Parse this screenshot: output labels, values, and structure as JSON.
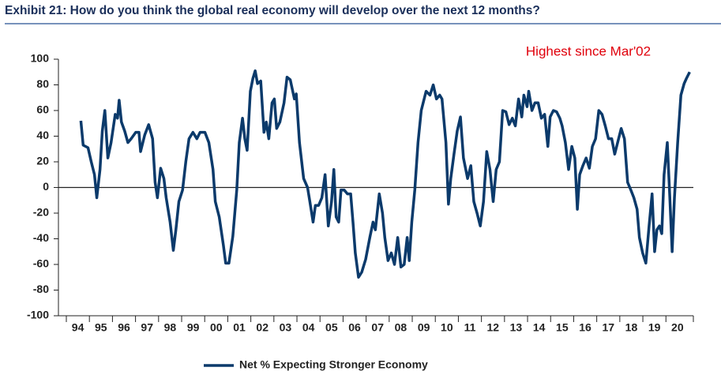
{
  "chart_data": {
    "type": "line",
    "title": "Exhibit 21: How do you think the global real economy will develop over the next 12 months?",
    "annotation": "Highest since Mar'02",
    "x": [
      1994.63,
      1994.73,
      1994.94,
      1995.08,
      1995.22,
      1995.32,
      1995.46,
      1995.56,
      1995.67,
      1995.8,
      1995.94,
      1996.12,
      1996.22,
      1996.29,
      1996.39,
      1996.53,
      1996.67,
      1996.81,
      1997.01,
      1997.15,
      1997.22,
      1997.4,
      1997.57,
      1997.74,
      1997.85,
      1997.95,
      1998.09,
      1998.23,
      1998.33,
      1998.5,
      1998.64,
      1998.75,
      1998.88,
      1999.04,
      1999.18,
      1999.32,
      1999.49,
      1999.66,
      1999.8,
      2000.01,
      2000.18,
      2000.36,
      2000.46,
      2000.63,
      2000.81,
      2000.91,
      2001.05,
      2001.22,
      2001.39,
      2001.5,
      2001.64,
      2001.74,
      2001.84,
      2001.98,
      2002.09,
      2002.19,
      2002.29,
      2002.43,
      2002.57,
      2002.67,
      2002.78,
      2002.92,
      2003.02,
      2003.12,
      2003.26,
      2003.44,
      2003.57,
      2003.71,
      2003.89,
      2003.97,
      2004.11,
      2004.29,
      2004.46,
      2004.56,
      2004.7,
      2004.8,
      2004.94,
      2005.08,
      2005.22,
      2005.36,
      2005.5,
      2005.6,
      2005.7,
      2005.81,
      2005.91,
      2006.05,
      2006.19,
      2006.33,
      2006.43,
      2006.53,
      2006.67,
      2006.81,
      2006.98,
      2007.16,
      2007.3,
      2007.4,
      2007.57,
      2007.71,
      2007.81,
      2007.95,
      2008.09,
      2008.23,
      2008.37,
      2008.51,
      2008.65,
      2008.78,
      2008.87,
      2008.98,
      2009.11,
      2009.25,
      2009.39,
      2009.6,
      2009.77,
      2009.91,
      2010.05,
      2010.19,
      2010.29,
      2010.46,
      2010.57,
      2010.67,
      2010.81,
      2010.95,
      2011.09,
      2011.22,
      2011.4,
      2011.54,
      2011.67,
      2011.81,
      2011.95,
      2012.09,
      2012.23,
      2012.37,
      2012.51,
      2012.64,
      2012.78,
      2012.92,
      2013.06,
      2013.2,
      2013.34,
      2013.47,
      2013.61,
      2013.75,
      2013.84,
      2013.98,
      2014.05,
      2014.19,
      2014.32,
      2014.46,
      2014.6,
      2014.74,
      2014.88,
      2014.98,
      2015.12,
      2015.26,
      2015.4,
      2015.5,
      2015.64,
      2015.78,
      2015.92,
      2016.05,
      2016.16,
      2016.26,
      2016.4,
      2016.54,
      2016.68,
      2016.81,
      2016.95,
      2017.09,
      2017.23,
      2017.37,
      2017.51,
      2017.65,
      2017.78,
      2017.92,
      2018.06,
      2018.2,
      2018.34,
      2018.48,
      2018.61,
      2018.75,
      2018.85,
      2018.99,
      2019.13,
      2019.27,
      2019.4,
      2019.51,
      2019.61,
      2019.72,
      2019.82,
      2019.92,
      2020.06,
      2020.17,
      2020.27,
      2020.37,
      2020.51,
      2020.65,
      2020.79,
      2020.89,
      2021.03
    ],
    "series": [
      {
        "name": "Net % Expecting Stronger Economy",
        "color": "#0b3a6b",
        "values": [
          52,
          33,
          31,
          20,
          10,
          -8,
          14,
          44,
          60,
          23,
          35,
          57,
          54,
          68,
          51,
          44,
          35,
          38,
          43,
          43,
          28,
          41,
          49,
          38,
          4,
          -8,
          15,
          7,
          -8,
          -27,
          -49,
          -33,
          -11,
          -2,
          20,
          38,
          43,
          38,
          43,
          43,
          35,
          14,
          -11,
          -23,
          -45,
          -59,
          -59,
          -38,
          -2,
          35,
          54,
          38,
          29,
          75,
          85,
          91,
          81,
          83,
          43,
          51,
          38,
          66,
          69,
          46,
          51,
          66,
          86,
          84,
          69,
          73,
          35,
          7,
          0,
          -11,
          -27,
          -14,
          -14,
          -8,
          10,
          -30,
          -11,
          14,
          -23,
          -27,
          -2,
          -2,
          -5,
          -5,
          -27,
          -51,
          -70,
          -66,
          -56,
          -39,
          -27,
          -33,
          -5,
          -20,
          -39,
          -57,
          -51,
          -60,
          -39,
          -62,
          -60,
          -39,
          -57,
          -27,
          -2,
          35,
          60,
          75,
          72,
          80,
          69,
          72,
          69,
          35,
          -13,
          7,
          26,
          44,
          55,
          23,
          7,
          17,
          -11,
          -20,
          -30,
          -11,
          28,
          14,
          -11,
          14,
          20,
          60,
          59,
          49,
          54,
          48,
          69,
          55,
          72,
          63,
          75,
          60,
          66,
          66,
          54,
          57,
          32,
          55,
          60,
          59,
          54,
          48,
          35,
          14,
          32,
          23,
          -17,
          10,
          17,
          23,
          15,
          32,
          38,
          60,
          57,
          48,
          38,
          38,
          26,
          36,
          46,
          38,
          4,
          -2,
          -8,
          -17,
          -39,
          -51,
          -59,
          -30,
          -5,
          -50,
          -33,
          -30,
          -36,
          10,
          35,
          -8,
          -50,
          -8,
          35,
          72,
          81,
          85,
          90
        ]
      }
    ],
    "xlim": [
      1994,
      2021.19
    ],
    "xticks": [
      {
        "value": 1994,
        "label": "94"
      },
      {
        "value": 1995,
        "label": "95"
      },
      {
        "value": 1996,
        "label": "96"
      },
      {
        "value": 1997,
        "label": "97"
      },
      {
        "value": 1998,
        "label": "98"
      },
      {
        "value": 1999,
        "label": "99"
      },
      {
        "value": 2000,
        "label": "00"
      },
      {
        "value": 2001,
        "label": "01"
      },
      {
        "value": 2002,
        "label": "02"
      },
      {
        "value": 2003,
        "label": "03"
      },
      {
        "value": 2004,
        "label": "04"
      },
      {
        "value": 2005,
        "label": "05"
      },
      {
        "value": 2006,
        "label": "06"
      },
      {
        "value": 2007,
        "label": "07"
      },
      {
        "value": 2008,
        "label": "08"
      },
      {
        "value": 2009,
        "label": "09"
      },
      {
        "value": 2010,
        "label": "10"
      },
      {
        "value": 2011,
        "label": "11"
      },
      {
        "value": 2012,
        "label": "12"
      },
      {
        "value": 2013,
        "label": "13"
      },
      {
        "value": 2014,
        "label": "14"
      },
      {
        "value": 2015,
        "label": "15"
      },
      {
        "value": 2016,
        "label": "16"
      },
      {
        "value": 2017,
        "label": "17"
      },
      {
        "value": 2018,
        "label": "18"
      },
      {
        "value": 2019,
        "label": "19"
      },
      {
        "value": 2020,
        "label": "20"
      }
    ],
    "ylim": [
      -100,
      100
    ],
    "yticks": [
      -100,
      -80,
      -60,
      -40,
      -20,
      0,
      20,
      40,
      60,
      80,
      100
    ],
    "zero_line": true,
    "grid": false,
    "legend": "bottom"
  }
}
